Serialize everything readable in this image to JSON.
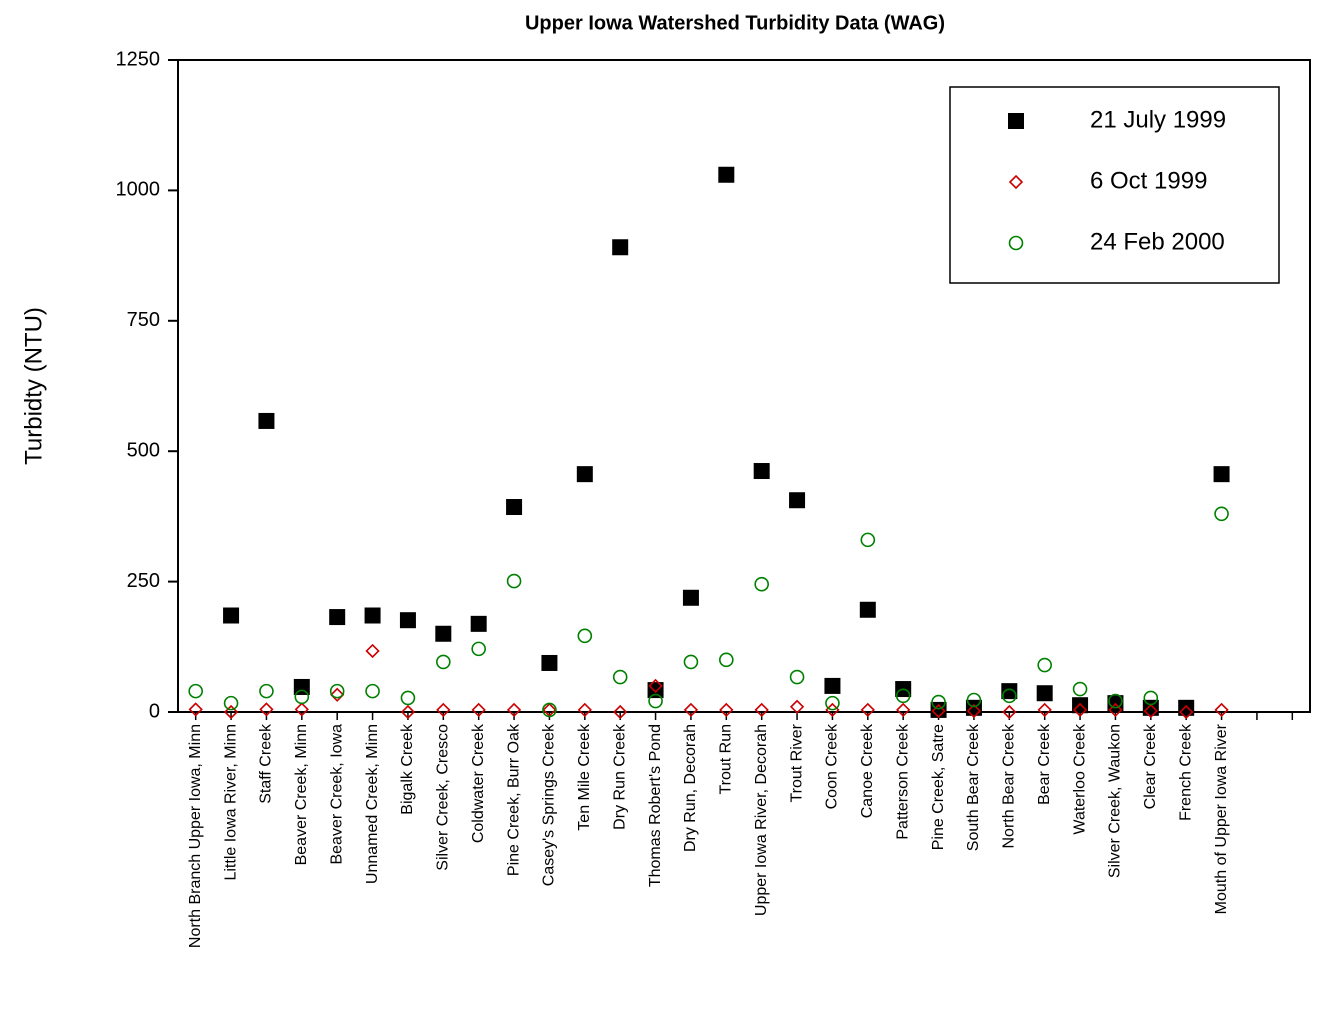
{
  "chart_data": {
    "type": "scatter",
    "title": "Upper Iowa Watershed Turbidity Data (WAG)",
    "y_label": "Turbidty (NTU)",
    "categories": [
      "North Branch Upper Iowa, Minn",
      "Little Iowa River, Minn",
      "Staff Creek",
      "Beaver Creek, Minn",
      "Beaver Creek, Iowa",
      "Unnamed Creek, Minn",
      "Bigalk Creek",
      "Silver Creek, Cresco",
      "Coldwater Creek",
      "Pine Creek, Burr Oak",
      "Casey's Springs Creek",
      "Ten Mile Creek",
      "Dry Run Creek",
      "Thomas Robert's Pond",
      "Dry Run, Decorah",
      "Trout Run",
      "Upper Iowa River, Decorah",
      "Trout River",
      "Coon Creek",
      "Canoe Creek",
      "Patterson Creek",
      "Pine Creek, Satre",
      "South Bear Creek",
      "North Bear Creek",
      "Bear Creek",
      "Waterloo Creek",
      "Silver Creek, Waukon",
      "Clear Creek",
      "French Creek",
      "Mouth of Upper Iowa River",
      null,
      null
    ],
    "series": [
      {
        "name": "21 July 1999",
        "color": "#000000",
        "marker": "square",
        "values": [
          null,
          185,
          558,
          48,
          182,
          185,
          176,
          150,
          169,
          393,
          94,
          456,
          891,
          42,
          219,
          1030,
          462,
          406,
          50,
          196,
          44,
          4,
          8,
          40,
          36,
          13,
          17,
          8,
          8,
          456,
          null,
          null
        ]
      },
      {
        "name": "6 Oct 1999",
        "color": "#cc0000",
        "marker": "diamond",
        "values": [
          5,
          0,
          5,
          5,
          33,
          117,
          0,
          4,
          4,
          4,
          4,
          4,
          0,
          50,
          4,
          4,
          4,
          10,
          4,
          4,
          4,
          2,
          2,
          0,
          4,
          4,
          4,
          2,
          0,
          4,
          null,
          null
        ]
      },
      {
        "name": "24 Feb 2000",
        "color": "#008000",
        "marker": "circle",
        "values": [
          40,
          17,
          40,
          29,
          40,
          40,
          27,
          96,
          121,
          251,
          4,
          146,
          67,
          21,
          96,
          100,
          245,
          67,
          17,
          330,
          31,
          19,
          23,
          31,
          90,
          44,
          21,
          27,
          null,
          380,
          null,
          null
        ]
      }
    ],
    "ylim": [
      0,
      1250
    ],
    "yticks": [
      0,
      250,
      500,
      750,
      1000,
      1250
    ],
    "legend": "upper-right"
  }
}
